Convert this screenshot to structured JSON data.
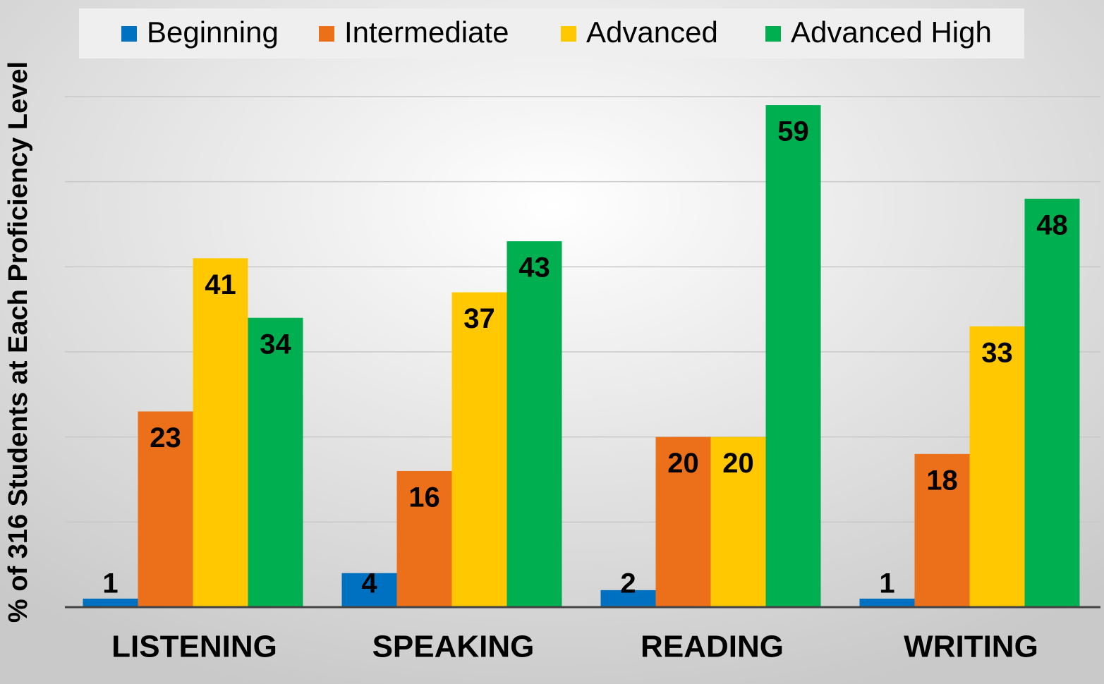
{
  "chart_data": {
    "type": "bar",
    "y_label": "% of 316 Students at Each Proficiency Level",
    "categories": [
      "LISTENING",
      "SPEAKING",
      "READING",
      "WRITING"
    ],
    "series": [
      {
        "name": "Beginning",
        "color": "#0070c0",
        "values": [
          1,
          4,
          2,
          1
        ]
      },
      {
        "name": "Intermediate",
        "color": "#ec6f1a",
        "values": [
          23,
          16,
          20,
          18
        ]
      },
      {
        "name": "Advanced",
        "color": "#ffc800",
        "values": [
          41,
          37,
          20,
          33
        ]
      },
      {
        "name": "Advanced High",
        "color": "#00b050",
        "values": [
          34,
          43,
          59,
          48
        ]
      }
    ],
    "ylim": [
      0,
      60
    ],
    "yticks": [
      0,
      10,
      20,
      30,
      40,
      50,
      60
    ],
    "grid": true,
    "legend": "top"
  }
}
